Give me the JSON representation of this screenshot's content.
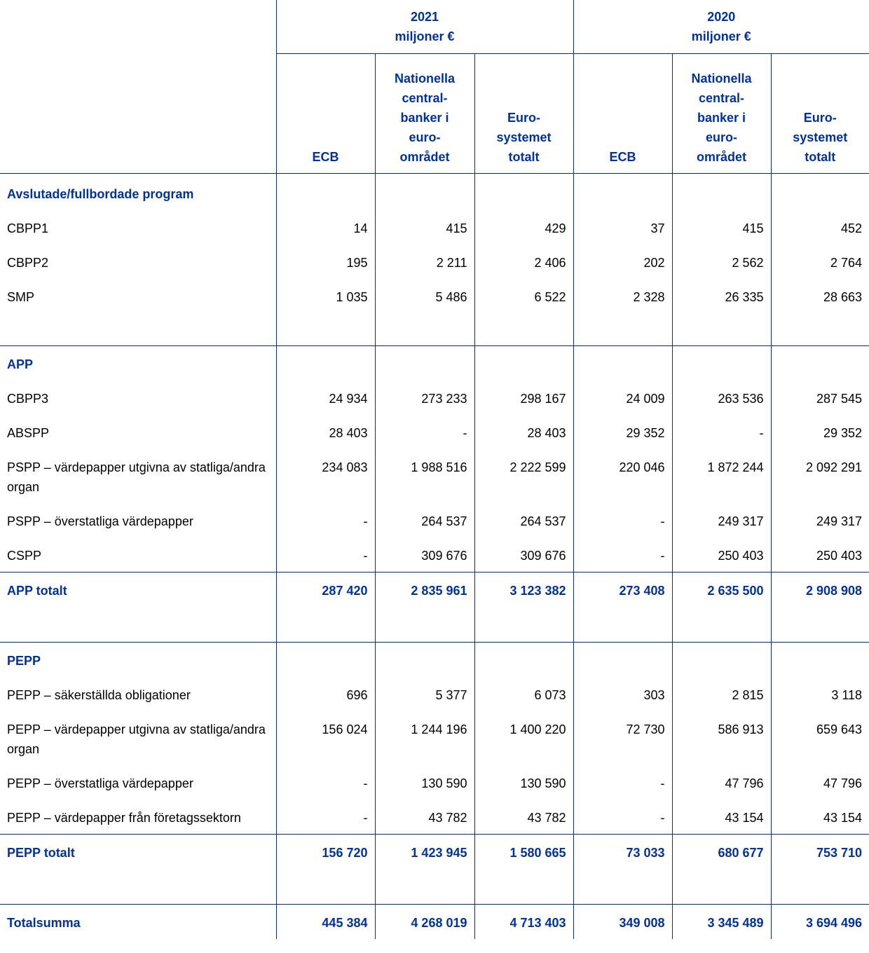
{
  "table": {
    "year_headers": [
      {
        "year": "2021",
        "unit": "miljoner €"
      },
      {
        "year": "2020",
        "unit": "miljoner €"
      }
    ],
    "column_headers": [
      [
        "ECB"
      ],
      [
        "Nationella",
        "central-",
        "banker i",
        "euro-",
        "området"
      ],
      [
        "Euro-",
        "systemet",
        "totalt"
      ],
      [
        "ECB"
      ],
      [
        "Nationella",
        "central-",
        "banker i",
        "euro-",
        "området"
      ],
      [
        "Euro-",
        "systemet",
        "totalt"
      ]
    ],
    "sections": [
      {
        "title": "Avslutade/fullbordade program",
        "rows": [
          {
            "label": "CBPP1",
            "values": [
              "14",
              "415",
              "429",
              "37",
              "415",
              "452"
            ]
          },
          {
            "label": "CBPP2",
            "values": [
              "195",
              "2 211",
              "2 406",
              "202",
              "2 562",
              "2 764"
            ]
          },
          {
            "label": "SMP",
            "values": [
              "1 035",
              "5 486",
              "6 522",
              "2 328",
              "26 335",
              "28 663"
            ]
          }
        ]
      },
      {
        "title": "APP",
        "rows": [
          {
            "label": "CBPP3",
            "values": [
              "24 934",
              "273 233",
              "298 167",
              "24 009",
              "263 536",
              "287 545"
            ]
          },
          {
            "label": "ABSPP",
            "values": [
              "28 403",
              "-",
              "28 403",
              "29 352",
              "-",
              "29 352"
            ]
          },
          {
            "label": "PSPP – värdepapper utgivna av statliga/andra organ",
            "values": [
              "234 083",
              "1 988 516",
              "2 222 599",
              "220 046",
              "1 872 244",
              "2 092 291"
            ]
          },
          {
            "label": "PSPP – överstatliga värdepapper",
            "values": [
              "-",
              "264 537",
              "264 537",
              "-",
              "249 317",
              "249 317"
            ]
          },
          {
            "label": "CSPP",
            "values": [
              "-",
              "309 676",
              "309 676",
              "-",
              "250 403",
              "250 403"
            ]
          }
        ],
        "total": {
          "label": "APP totalt",
          "values": [
            "287 420",
            "2 835 961",
            "3 123 382",
            "273 408",
            "2 635 500",
            "2 908 908"
          ]
        }
      },
      {
        "title": "PEPP",
        "rows": [
          {
            "label": "PEPP – säkerställda obligationer",
            "values": [
              "696",
              "5 377",
              "6 073",
              "303",
              "2 815",
              "3 118"
            ]
          },
          {
            "label": "PEPP – värdepapper utgivna av statliga/andra organ",
            "values": [
              "156 024",
              "1 244 196",
              "1 400 220",
              "72 730",
              "586 913",
              "659 643"
            ]
          },
          {
            "label": "PEPP – överstatliga värdepapper",
            "values": [
              "-",
              "130 590",
              "130 590",
              "-",
              "47 796",
              "47 796"
            ]
          },
          {
            "label": "PEPP – värdepapper från företagssektorn",
            "values": [
              "-",
              "43 782",
              "43 782",
              "-",
              "43 154",
              "43 154"
            ]
          }
        ],
        "total": {
          "label": "PEPP totalt",
          "values": [
            "156 720",
            "1 423 945",
            "1 580 665",
            "73 033",
            "680 677",
            "753 710"
          ]
        }
      }
    ],
    "grand_total": {
      "label": "Totalsumma",
      "values": [
        "445 384",
        "4 268 019",
        "4 713 403",
        "349 008",
        "3 345 489",
        "3 694 496"
      ]
    }
  }
}
